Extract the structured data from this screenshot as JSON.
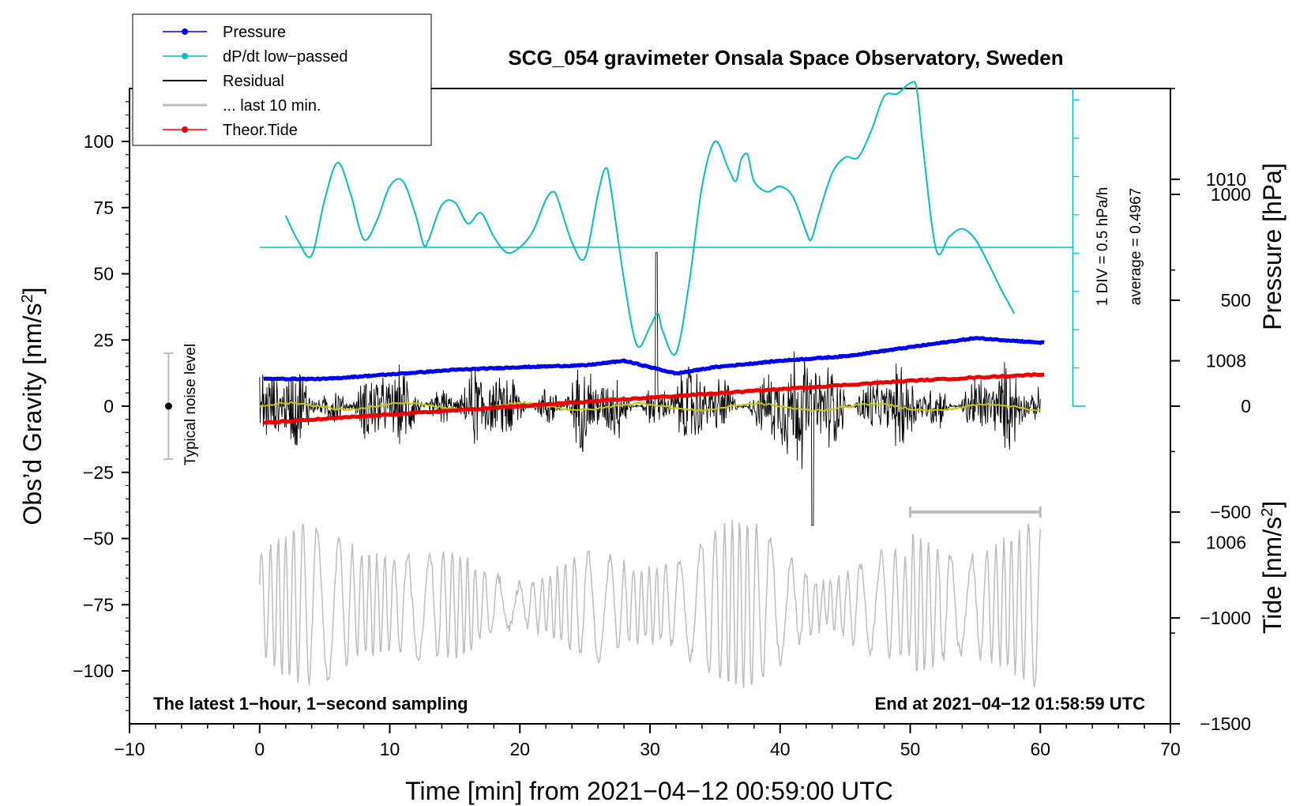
{
  "chart_data": {
    "type": "line",
    "title": "SCG_054 gravimeter Onsala Space Observatory, Sweden",
    "xlabel": "Time [min] from 2021−04−12 00:59:00 UTC",
    "ylabel_left": "Obs’d Gravity [nm/s",
    "ylabel_left_sup": "2",
    "ylabel_left_end": "]",
    "ylabel_right_pressure": "Pressure [hPa]",
    "ylabel_right_tide": "Tide [nm/s",
    "ylabel_right_tide_sup": "2",
    "ylabel_right_tide_end": "]",
    "xlim": [
      -10,
      70
    ],
    "ylim_left": [
      -120,
      120
    ],
    "pressure_lim": [
      1004,
      1011
    ],
    "tide_lim": [
      -1500,
      1500
    ],
    "x_ticks": [
      -10,
      0,
      10,
      20,
      30,
      40,
      50,
      60,
      70
    ],
    "x_tick_labels": [
      "−10",
      "0",
      "10",
      "20",
      "30",
      "40",
      "50",
      "60",
      "70"
    ],
    "y_ticks_left": [
      100,
      75,
      50,
      25,
      0,
      -25,
      -50,
      -75,
      -100
    ],
    "y_tick_labels_left": [
      "100",
      "75",
      "50",
      "25",
      "0",
      "−25",
      "−50",
      "−75",
      "−100"
    ],
    "pressure_ticks": [
      1010,
      1008,
      1006
    ],
    "pressure_tick_labels": [
      "1010",
      "1008",
      "1006"
    ],
    "tide_ticks": [
      1000,
      500,
      0,
      -500,
      -1000,
      -1500
    ],
    "tide_tick_labels": [
      "1000",
      "500",
      "0",
      "−500",
      "−1000",
      "−1500"
    ],
    "legend": [
      {
        "label": "Pressure",
        "color": "#0000ee",
        "marker": true
      },
      {
        "label": "dP/dt low−passed",
        "color": "#00c0c0",
        "marker": true
      },
      {
        "label": "Residual",
        "color": "#000000",
        "marker": false
      },
      {
        "label": "... last 10 min.",
        "color": "#bdbdbd",
        "marker": false
      },
      {
        "label": "Theor.Tide",
        "color": "#ee0000",
        "marker": true
      }
    ],
    "annotations": {
      "bottom_left": "The latest 1−hour, 1−second sampling",
      "bottom_right": "End at 2021−04−12 01:58:59 UTC",
      "noise_label": "Typical noise level",
      "div_label": "1 DIV = 0.5 hPa/h",
      "average_label": "average = 0.4967"
    },
    "noise_bar": {
      "x": -7,
      "y": 0,
      "low": -20,
      "high": 20
    },
    "last10_bar": {
      "x_start": 50,
      "x_end": 60
    },
    "series": {
      "pressure_hpa": {
        "x": [
          0,
          5,
          10,
          15,
          20,
          25,
          28,
          32,
          35,
          40,
          45,
          50,
          55,
          60
        ],
        "y": [
          1007.8,
          1007.8,
          1007.85,
          1007.9,
          1007.93,
          1007.95,
          1008.0,
          1007.86,
          1007.93,
          1008.0,
          1008.05,
          1008.15,
          1008.25,
          1008.2
        ]
      },
      "dpdt_reference_level": 60,
      "dpdt_lowpassed": {
        "x": [
          2,
          3,
          4,
          5,
          6,
          7,
          8,
          9,
          10,
          11,
          12,
          12.6,
          13,
          14,
          15,
          16,
          17,
          18,
          19,
          20,
          21,
          22,
          22.6,
          23,
          24,
          25,
          26,
          26.6,
          27,
          28,
          29,
          30,
          30.6,
          31,
          32,
          33,
          34,
          35,
          36,
          36.6,
          37,
          37.5,
          38,
          39,
          40,
          41,
          42,
          42.4,
          43,
          44,
          45,
          46,
          47,
          48,
          49,
          50,
          50.5,
          51,
          52,
          53,
          54,
          55,
          56,
          57,
          58
        ],
        "y": [
          72,
          62,
          57,
          78,
          92,
          80,
          63,
          70,
          83,
          85,
          72,
          61,
          63,
          76,
          77,
          69,
          73,
          64,
          58,
          60,
          66,
          78,
          81,
          77,
          62,
          56,
          80,
          90,
          82,
          48,
          23,
          30,
          35,
          28,
          20,
          46,
          83,
          100,
          90,
          85,
          93,
          95,
          85,
          81,
          83,
          79,
          66,
          63,
          73,
          88,
          94,
          94,
          104,
          117,
          118,
          122,
          120,
          97,
          59,
          64,
          67,
          63,
          54,
          44,
          35
        ]
      },
      "tide_nm_s2": {
        "x": [
          0,
          10,
          20,
          30,
          40,
          50,
          60
        ],
        "y": [
          -80,
          -40,
          0,
          40,
          80,
          120,
          150
        ]
      }
    }
  }
}
